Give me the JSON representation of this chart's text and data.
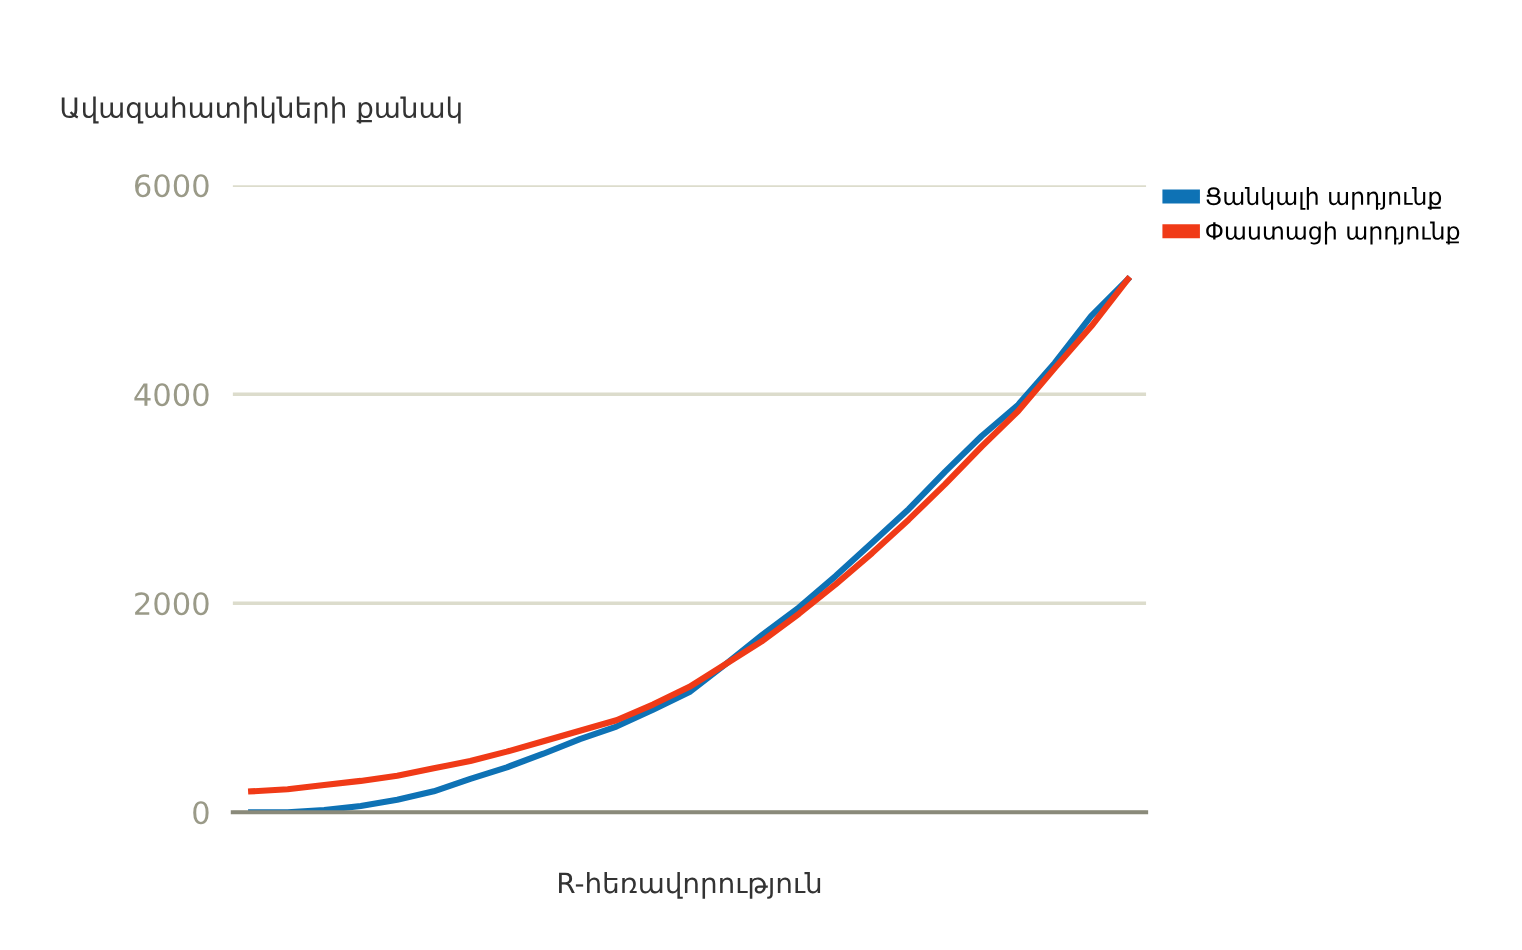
{
  "chart_data": {
    "type": "line",
    "xlabel": "R-հեռավորություն",
    "ylabel": "Ավազահատիկների քանակ",
    "categories": [
      null,
      null,
      null,
      null,
      null,
      null,
      null,
      null,
      null,
      null,
      null,
      null,
      null,
      null,
      null,
      null,
      null,
      null,
      null,
      null,
      null,
      null,
      null,
      null,
      null
    ],
    "series": [
      {
        "name": "Ցանկալի արդյունք",
        "color": "#0e72b5",
        "values": [
          0,
          0,
          20,
          60,
          120,
          200,
          320,
          430,
          560,
          700,
          820,
          980,
          1150,
          1420,
          1700,
          1960,
          2260,
          2580,
          2900,
          3260,
          3600,
          3900,
          4300,
          4750,
          5100
        ]
      },
      {
        "name": "Փաստացի արդյունք",
        "color": "#f03a17",
        "values": [
          200,
          220,
          260,
          300,
          350,
          420,
          490,
          580,
          680,
          780,
          880,
          1030,
          1200,
          1420,
          1640,
          1900,
          2180,
          2480,
          2800,
          3140,
          3500,
          3840,
          4250,
          4650,
          5100
        ]
      }
    ],
    "ylim": [
      0,
      6000
    ],
    "yticks": [
      0,
      2000,
      4000,
      6000
    ],
    "grid": "y",
    "legend": "top right",
    "marker": "none",
    "line_style": "solid"
  }
}
